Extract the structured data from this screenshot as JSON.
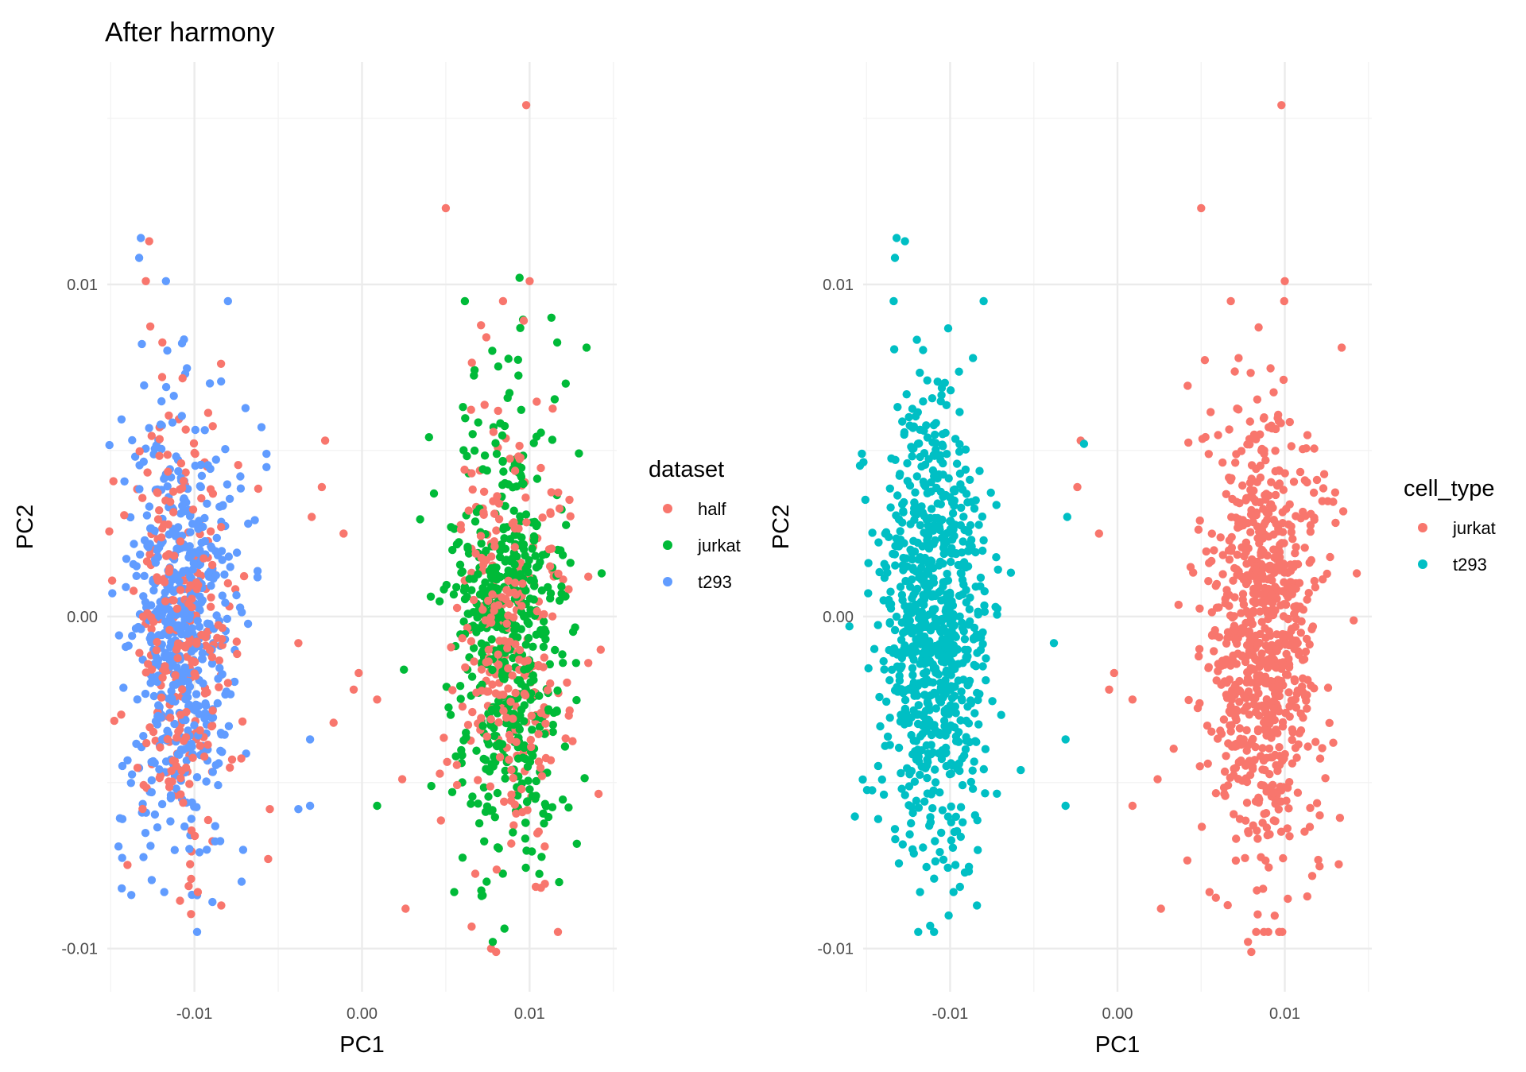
{
  "figure_title": "After harmony",
  "chart_data": [
    {
      "type": "scatter",
      "title": "",
      "xlabel": "PC1",
      "ylabel": "PC2",
      "xlim": [
        -0.0152,
        0.0152
      ],
      "ylim": [
        -0.0113,
        0.0167
      ],
      "x_ticks": [
        {
          "value": -0.01,
          "label": "-0.01"
        },
        {
          "value": 0.0,
          "label": "0.00"
        },
        {
          "value": 0.01,
          "label": "0.01"
        }
      ],
      "y_ticks": [
        {
          "value": -0.01,
          "label": "-0.01"
        },
        {
          "value": 0.0,
          "label": "0.00"
        },
        {
          "value": 0.01,
          "label": "0.01"
        }
      ],
      "grid": true,
      "legend_title": "dataset",
      "legend_position": "right",
      "series": [
        {
          "name": "half",
          "color": "#F8766D",
          "cluster": "mixed",
          "points": [
            [
              -0.0098,
              -0.0083
            ],
            [
              -0.0084,
              -0.0087
            ],
            [
              -0.008,
              0.001
            ],
            [
              -0.008,
              -0.002
            ],
            [
              0.005,
              0.0123
            ],
            [
              0.0098,
              0.0154
            ],
            [
              0.01,
              0.0101
            ],
            [
              -0.0127,
              0.0113
            ],
            [
              -0.0129,
              0.0101
            ],
            [
              -0.0022,
              0.0053
            ],
            [
              -0.0024,
              0.0039
            ],
            [
              -0.003,
              0.003
            ],
            [
              -0.0011,
              0.0025
            ],
            [
              -0.0038,
              -0.0008
            ],
            [
              -0.0002,
              -0.0017
            ],
            [
              -0.0005,
              -0.0022
            ],
            [
              0.0009,
              -0.0025
            ],
            [
              -0.0017,
              -0.0032
            ],
            [
              0.0024,
              -0.0049
            ],
            [
              0.0026,
              -0.0088
            ],
            [
              0.0135,
              0.0012
            ],
            [
              0.0135,
              -0.0014
            ],
            [
              -0.0055,
              -0.0058
            ],
            [
              -0.0056,
              -0.0073
            ],
            [
              0.0077,
              -0.01
            ],
            [
              0.008,
              -0.0101
            ]
          ]
        },
        {
          "name": "jurkat",
          "color": "#00BA38",
          "cluster": "right",
          "points": [
            [
              0.0094,
              0.0102
            ],
            [
              0.0113,
              0.009
            ],
            [
              0.0134,
              0.0081
            ],
            [
              0.0143,
              0.0013
            ],
            [
              0.0009,
              -0.0057
            ],
            [
              0.0025,
              -0.0016
            ],
            [
              0.0041,
              0.0006
            ],
            [
              0.004,
              0.0054
            ],
            [
              0.0078,
              -0.0098
            ],
            [
              0.0085,
              -0.0094
            ],
            [
              0.0072,
              -0.0084
            ],
            [
              0.009,
              -0.0065
            ],
            [
              0.0055,
              -0.0083
            ]
          ]
        },
        {
          "name": "t293",
          "color": "#619CFF",
          "cluster": "left",
          "points": [
            [
              -0.0132,
              0.0114
            ],
            [
              -0.0133,
              0.0108
            ],
            [
              -0.0117,
              0.0101
            ],
            [
              -0.008,
              0.0095
            ],
            [
              -0.0057,
              0.0049
            ],
            [
              -0.0057,
              0.0045
            ],
            [
              -0.006,
              0.0057
            ],
            [
              -0.0064,
              0.0029
            ],
            [
              -0.0031,
              -0.0037
            ],
            [
              -0.0031,
              -0.0057
            ],
            [
              -0.0038,
              -0.0058
            ],
            [
              -0.0149,
              0.0007
            ],
            [
              -0.0143,
              -0.0045
            ],
            [
              -0.0143,
              -0.0061
            ],
            [
              -0.0118,
              -0.0083
            ],
            [
              -0.0103,
              -0.007
            ],
            [
              -0.0097,
              -0.0071
            ]
          ]
        }
      ]
    },
    {
      "type": "scatter",
      "title": "",
      "xlabel": "PC1",
      "ylabel": "PC2",
      "xlim": [
        -0.0152,
        0.0152
      ],
      "ylim": [
        -0.0113,
        0.0167
      ],
      "x_ticks": [
        {
          "value": -0.01,
          "label": "-0.01"
        },
        {
          "value": 0.0,
          "label": "0.00"
        },
        {
          "value": 0.01,
          "label": "0.01"
        }
      ],
      "y_ticks": [
        {
          "value": -0.01,
          "label": "-0.01"
        },
        {
          "value": 0.0,
          "label": "0.00"
        },
        {
          "value": 0.01,
          "label": "0.01"
        }
      ],
      "grid": true,
      "legend_title": "cell_type",
      "legend_position": "right",
      "series": [
        {
          "name": "jurkat",
          "color": "#F8766D",
          "cluster": "right",
          "points": [
            [
              0.0098,
              0.0154
            ],
            [
              0.005,
              0.0123
            ],
            [
              0.01,
              0.0101
            ],
            [
              0.0134,
              0.0081
            ],
            [
              0.0143,
              0.0013
            ],
            [
              -0.0022,
              0.0053
            ],
            [
              -0.0024,
              0.0039
            ],
            [
              -0.0011,
              0.0025
            ],
            [
              -0.0002,
              -0.0017
            ],
            [
              -0.0005,
              -0.0022
            ],
            [
              0.0009,
              -0.0025
            ],
            [
              0.0024,
              -0.0049
            ],
            [
              0.0009,
              -0.0057
            ],
            [
              0.0026,
              -0.0088
            ],
            [
              0.0078,
              -0.0098
            ],
            [
              0.008,
              -0.0101
            ],
            [
              0.0055,
              -0.0083
            ]
          ]
        },
        {
          "name": "t293",
          "color": "#00BFC4",
          "cluster": "left",
          "points": [
            [
              -0.0132,
              0.0114
            ],
            [
              -0.0133,
              0.0108
            ],
            [
              -0.0127,
              0.0113
            ],
            [
              -0.008,
              0.0095
            ],
            [
              -0.002,
              0.0052
            ],
            [
              -0.003,
              0.003
            ],
            [
              -0.0038,
              -0.0008
            ],
            [
              -0.0031,
              -0.0037
            ],
            [
              -0.0031,
              -0.0057
            ],
            [
              -0.0149,
              0.0007
            ],
            [
              -0.0143,
              -0.0045
            ],
            [
              -0.0143,
              -0.0061
            ],
            [
              -0.0118,
              -0.0083
            ],
            [
              -0.0084,
              -0.0087
            ],
            [
              -0.0098,
              -0.0083
            ]
          ]
        }
      ]
    }
  ]
}
